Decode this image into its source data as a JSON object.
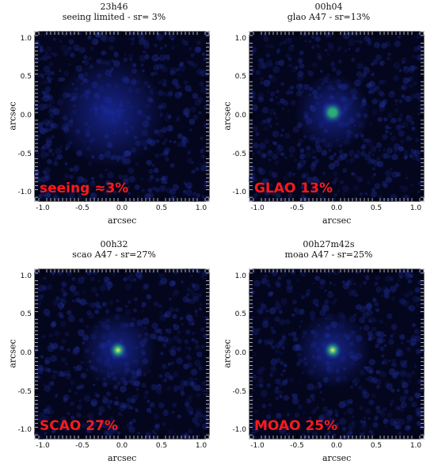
{
  "panels": [
    {
      "time": "23h46",
      "subtitle": "seeing limited - sr= 3%",
      "overlay": "seeing ≈3%",
      "peak": 0.0
    },
    {
      "time": "00h04",
      "subtitle": "glao A47 - sr=13%",
      "overlay": "GLAO 13%",
      "peak": 0.45
    },
    {
      "time": "00h32",
      "subtitle": "scao A47 - sr=27%",
      "overlay": "SCAO 27%",
      "peak": 1.0
    },
    {
      "time": "00h27m42s",
      "subtitle": "moao A47 - sr=25%",
      "overlay": "MOAO 25%",
      "peak": 0.9
    }
  ],
  "axes": {
    "xlabel": "arcsec",
    "ylabel": "arcsec",
    "xticks": [
      "-1.0",
      "-0.5",
      "0.0",
      "0.5",
      "1.0"
    ],
    "yticks": [
      "1.0",
      "0.5",
      "0.0",
      "-0.5",
      "-1.0"
    ]
  },
  "colors": {
    "background": "#04061e",
    "halo": "#1a2aa0",
    "core": "#2bb37a",
    "peak": "#f2f06a",
    "overlay_text": "#ff1a1a"
  }
}
